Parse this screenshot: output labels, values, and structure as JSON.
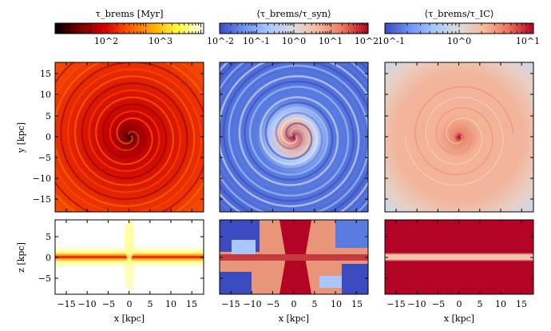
{
  "colorbars": [
    {
      "title": "τ_brems [Myr]",
      "ticks": [
        "10^2",
        "10^3"
      ],
      "colors": [
        "#000000",
        "#7a0000",
        "#d40000",
        "#ff5a00",
        "#ffb000",
        "#ffff40",
        "#ffffff"
      ]
    },
    {
      "title": "⟨τ_brems/τ_syn⟩",
      "ticks": [
        "10^-2",
        "10^-1",
        "10^0",
        "10^1",
        "10^2"
      ],
      "colors": [
        "#3b4cc0",
        "#6f92f3",
        "#aac7fd",
        "#dddcdc",
        "#f7b89c",
        "#e7745b",
        "#b40426"
      ]
    },
    {
      "title": "⟨τ_brems/τ_IC⟩",
      "ticks": [
        "10^-1",
        "10^0",
        "10^1"
      ],
      "colors": [
        "#3b4cc0",
        "#6f92f3",
        "#aac7fd",
        "#dddcdc",
        "#f7b89c",
        "#e7745b",
        "#b40426"
      ]
    }
  ],
  "axes": {
    "y_label": "y [kpc]",
    "z_label": "z [kpc]",
    "x_label": "x [kpc]",
    "y_ticks": [
      "15",
      "10",
      "5",
      "0",
      "−5",
      "−10",
      "−15"
    ],
    "z_ticks": [
      "5",
      "0",
      "−5"
    ],
    "x_ticks": [
      "−15",
      "−10",
      "−5",
      "0",
      "5",
      "10",
      "15"
    ]
  },
  "panels": [
    {
      "name": "brems-face-on",
      "palette": "hot"
    },
    {
      "name": "brems-syn-face-on",
      "palette": "coolwarm-blue"
    },
    {
      "name": "brems-ic-face-on",
      "palette": "coolwarm-pink"
    },
    {
      "name": "brems-edge-on",
      "palette": "hot-edge"
    },
    {
      "name": "brems-syn-edge-on",
      "palette": "coolwarm-mixed"
    },
    {
      "name": "brems-ic-edge-on",
      "palette": "coolwarm-red"
    }
  ]
}
